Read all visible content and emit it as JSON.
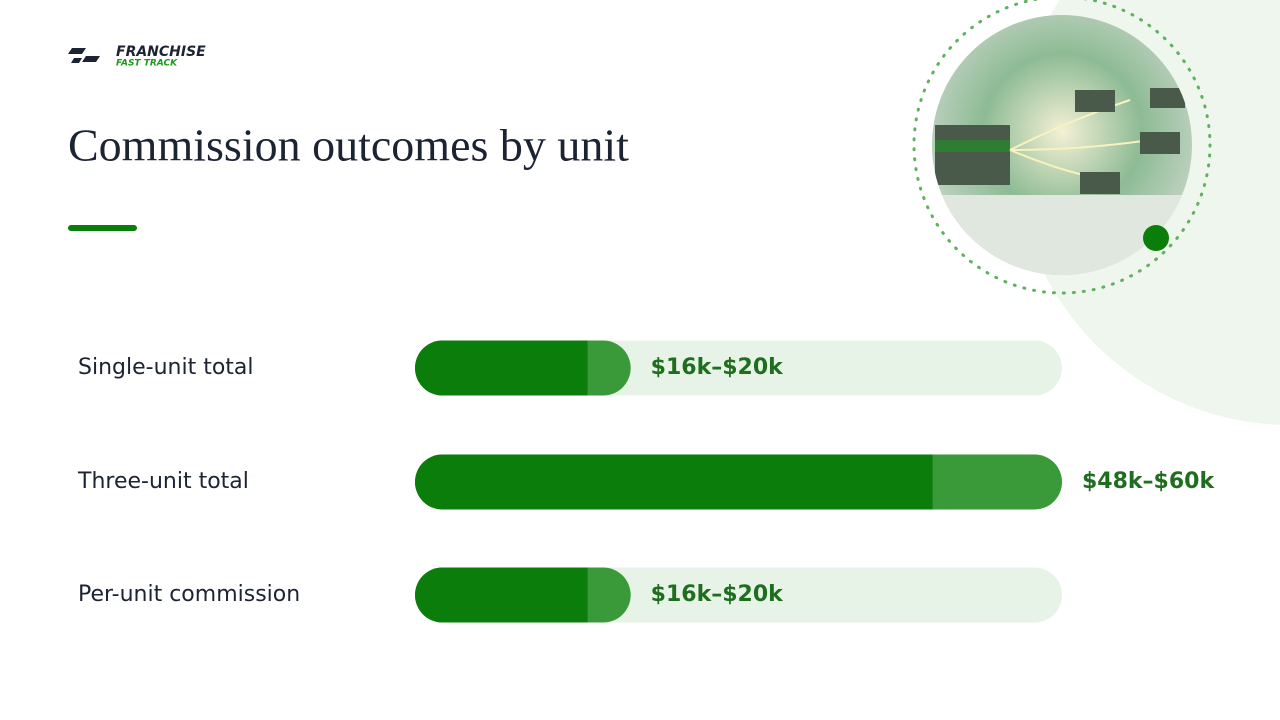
{
  "logo": {
    "line1": "FRANCHISE",
    "line2": "FAST TRACK"
  },
  "chart_data": {
    "type": "range-bar",
    "title": "Commission outcomes by unit",
    "categories": [
      "Single-unit total",
      "Three-unit total",
      "Per-unit commission"
    ],
    "low": [
      16,
      48,
      16
    ],
    "high": [
      20,
      60,
      20
    ],
    "value_labels": [
      "$16k–$20k",
      "$48k–$60k",
      "$16k–$20k"
    ],
    "xlim": [
      0,
      60
    ],
    "color": "#0a7d0a",
    "range_color": "#3a9a3a",
    "track_color": "#e8f3e8"
  }
}
